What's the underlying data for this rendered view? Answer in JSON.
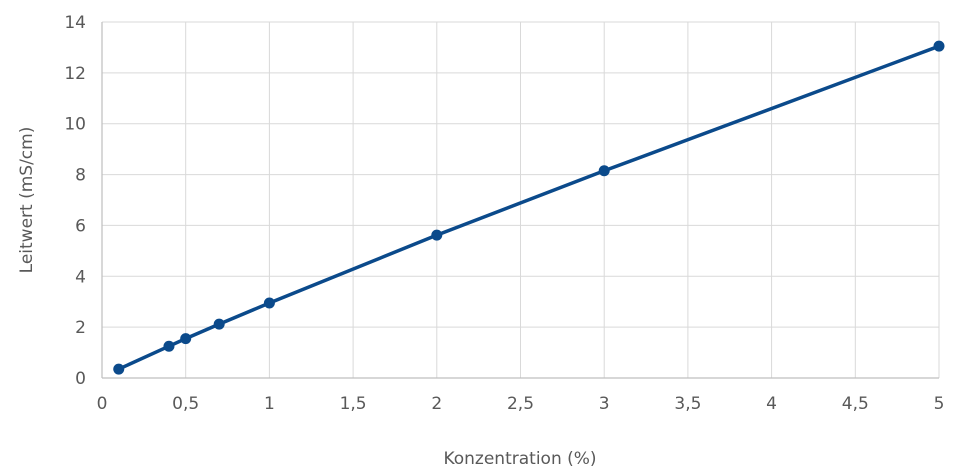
{
  "chart_data": {
    "type": "line",
    "title": "",
    "xlabel": "Konzentration (%)",
    "ylabel": "Leitwert (mS/cm)",
    "xlim": [
      0,
      5
    ],
    "ylim": [
      0,
      14
    ],
    "x_ticks": [
      "0",
      "0,5",
      "1",
      "1,5",
      "2",
      "2,5",
      "3",
      "3,5",
      "4",
      "4,5",
      "5"
    ],
    "y_ticks": [
      "0",
      "2",
      "4",
      "6",
      "8",
      "10",
      "12",
      "14"
    ],
    "grid": true,
    "legend": "none",
    "series": [
      {
        "color": "#0b4a8b",
        "x": [
          0.1,
          0.4,
          0.5,
          0.7,
          1,
          2,
          3,
          5
        ],
        "y": [
          0.35,
          1.25,
          1.55,
          2.12,
          2.95,
          5.62,
          8.15,
          13.05
        ]
      }
    ]
  }
}
